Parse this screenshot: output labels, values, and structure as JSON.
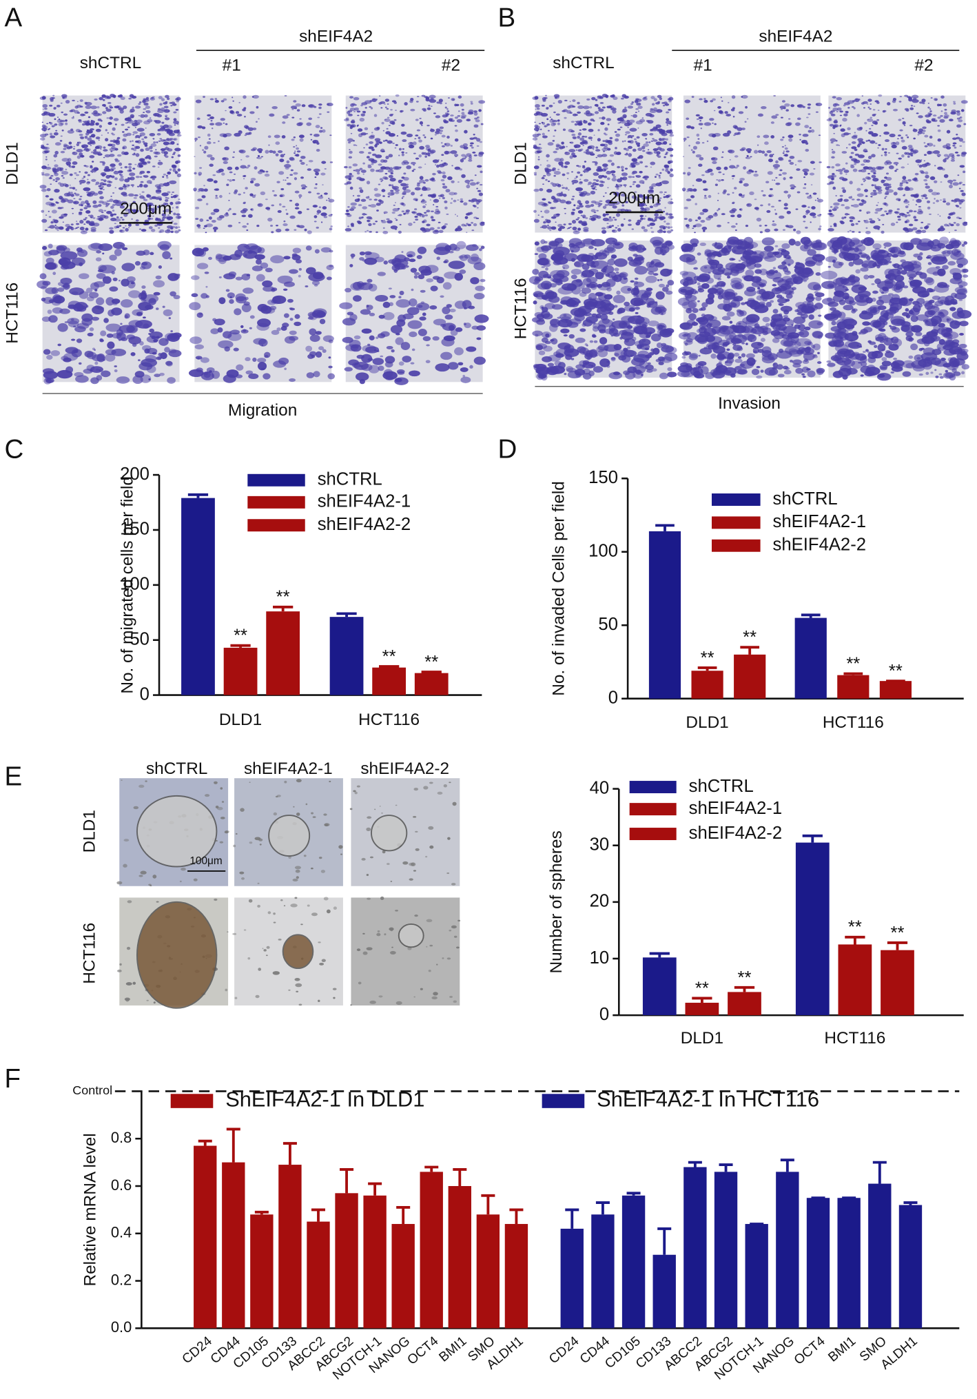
{
  "panel_letters": [
    "A",
    "B",
    "C",
    "D",
    "E",
    "F"
  ],
  "panel_a": {
    "group_label": "shEIF4A2",
    "control": "shCTRL",
    "clones": [
      "#1",
      "#2"
    ],
    "rows": [
      "DLD1",
      "HCT116"
    ],
    "scale_bar": "200μm",
    "caption": "Migration"
  },
  "panel_b": {
    "group_label": "shEIF4A2",
    "control": "shCTRL",
    "clones": [
      "#1",
      "#2"
    ],
    "rows": [
      "DLD1",
      "HCT116"
    ],
    "scale_bar": "200μm",
    "caption": "Invasion"
  },
  "panel_e": {
    "columns": [
      "shCTRL",
      "shEIF4A2-1",
      "shEIF4A2-2"
    ],
    "rows": [
      "DLD1",
      "HCT116"
    ],
    "scale_bar": "100μm"
  },
  "chart_data": [
    {
      "type": "bar",
      "ylabel": "No. of migrated cells per field",
      "categories": [
        "DLD1",
        "HCT116"
      ],
      "series": [
        {
          "name": "shCTRL",
          "color": "#1b1a8a",
          "values": [
            179,
            71
          ],
          "errors": [
            3,
            3
          ]
        },
        {
          "name": "shEIF4A2-1",
          "color": "#a60e0e",
          "values": [
            43,
            25
          ],
          "errors": [
            2,
            1
          ],
          "significance": [
            "**",
            "**"
          ]
        },
        {
          "name": "shEIF4A2-2",
          "color": "#a60e0e",
          "values": [
            76,
            20
          ],
          "errors": [
            4,
            1
          ],
          "significance": [
            "**",
            "**"
          ]
        }
      ],
      "ylim": [
        0,
        200
      ],
      "yticks": [
        0,
        50,
        100,
        150,
        200
      ]
    },
    {
      "type": "bar",
      "ylabel": "No. of invaded  Cells per field",
      "categories": [
        "DLD1",
        "HCT116"
      ],
      "series": [
        {
          "name": "shCTRL",
          "color": "#1b1a8a",
          "values": [
            114,
            55
          ],
          "errors": [
            4,
            2
          ]
        },
        {
          "name": "shEIF4A2-1",
          "color": "#a60e0e",
          "values": [
            19,
            16
          ],
          "errors": [
            2,
            1
          ],
          "significance": [
            "**",
            "**"
          ]
        },
        {
          "name": "shEIF4A2-2",
          "color": "#a60e0e",
          "values": [
            30,
            12
          ],
          "errors": [
            5,
            0
          ],
          "significance": [
            "**",
            "**"
          ]
        }
      ],
      "ylim": [
        0,
        150
      ],
      "yticks": [
        0,
        50,
        100,
        150
      ]
    },
    {
      "type": "bar",
      "ylabel": "Number of spheres",
      "categories": [
        "DLD1",
        "HCT116"
      ],
      "series": [
        {
          "name": "shCTRL",
          "color": "#1b1a8a",
          "values": [
            10.2,
            30.5
          ],
          "errors": [
            0.7,
            1.2
          ]
        },
        {
          "name": "shEIF4A2-1",
          "color": "#a60e0e",
          "values": [
            2.2,
            12.5
          ],
          "errors": [
            0.8,
            1.3
          ],
          "significance": [
            "**",
            "**"
          ]
        },
        {
          "name": "shEIF4A2-2",
          "color": "#a60e0e",
          "values": [
            4.1,
            11.5
          ],
          "errors": [
            0.8,
            1.3
          ],
          "significance": [
            "**",
            "**"
          ]
        }
      ],
      "ylim": [
        0,
        40
      ],
      "yticks": [
        0,
        10,
        20,
        30,
        40
      ]
    },
    {
      "type": "bar",
      "ylabel": "Relative  mRNA level",
      "categories": [
        "CD24",
        "CD44",
        "CD105",
        "CD133",
        "ABCC2",
        "ABCG2",
        "NOTCH-1",
        "NANOG",
        "OCT4",
        "BMI1",
        "SMO",
        "ALDH1",
        "CD24",
        "CD44",
        "CD105",
        "CD133",
        "ABCC2",
        "ABCG2",
        "NOTCH-1",
        "NANOG",
        "OCT4",
        "BMI1",
        "SMO",
        "ALDH1"
      ],
      "series": [
        {
          "name": "ShEIF4A2-1 In DLD1",
          "color": "#a60e0e",
          "values": [
            0.77,
            0.7,
            0.48,
            0.69,
            0.45,
            0.57,
            0.56,
            0.44,
            0.66,
            0.6,
            0.48,
            0.44,
            null,
            null,
            null,
            null,
            null,
            null,
            null,
            null,
            null,
            null,
            null,
            null
          ],
          "errors": [
            0.02,
            0.14,
            0.01,
            0.09,
            0.05,
            0.1,
            0.05,
            0.07,
            0.02,
            0.07,
            0.08,
            0.06,
            null,
            null,
            null,
            null,
            null,
            null,
            null,
            null,
            null,
            null,
            null,
            null
          ]
        },
        {
          "name": "ShEIF4A2-1 In HCT116",
          "color": "#1b1a8a",
          "values": [
            null,
            null,
            null,
            null,
            null,
            null,
            null,
            null,
            null,
            null,
            null,
            null,
            0.42,
            0.48,
            0.56,
            0.31,
            0.68,
            0.66,
            0.44,
            0.66,
            0.55,
            0.55,
            0.61,
            0.52
          ],
          "errors": [
            null,
            null,
            null,
            null,
            null,
            null,
            null,
            null,
            null,
            null,
            null,
            null,
            0.08,
            0.05,
            0.01,
            0.11,
            0.02,
            0.03,
            0.0,
            0.05,
            0.0,
            0.0,
            0.09,
            0.01
          ]
        }
      ],
      "reference_line": {
        "value": 1,
        "label": "Control"
      },
      "ylim": [
        0,
        1
      ],
      "yticks": [
        {
          "value": 0,
          "label": "0.0"
        },
        0.2,
        0.4,
        0.6,
        0.8
      ]
    }
  ]
}
